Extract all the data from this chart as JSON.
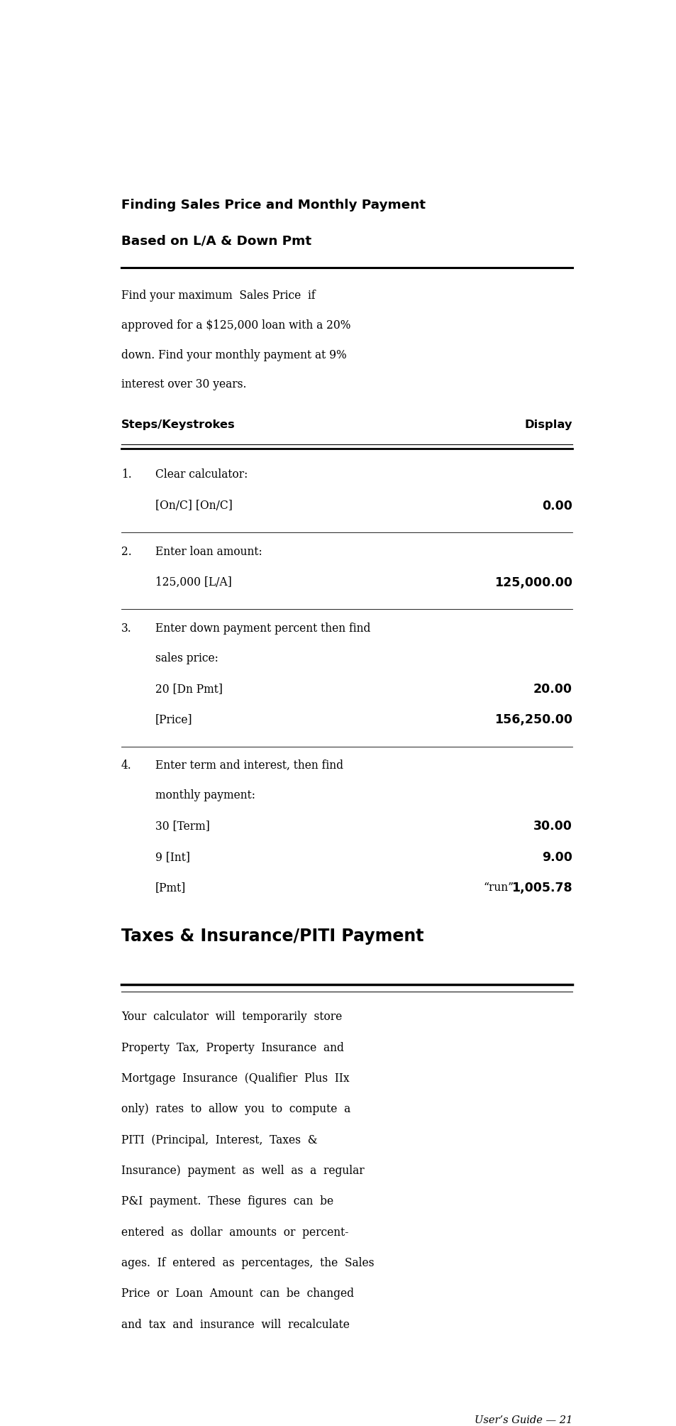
{
  "bg_color": "#ffffff",
  "text_color": "#000000",
  "section1_title_line1": "Finding Sales Price and Monthly Payment",
  "section1_title_line2": "Based on L/A & Down Pmt",
  "intro_lines": [
    "Find your maximum  Sales Price  if",
    "approved for a $125,000 loan with a 20%",
    "down. Find your monthly payment at 9%",
    "interest over 30 years."
  ],
  "col_header_left": "Steps/Keystrokes",
  "col_header_right": "Display",
  "section2_title": "Taxes & Insurance/PITI Payment",
  "body_lines": [
    "Your  calculator  will  temporarily  store",
    "Property  Tax,  Property  Insurance  and",
    "Mortgage  Insurance  (Qualifier  Plus  IIx",
    "only)  rates  to  allow  you  to  compute  a",
    "PITI  (Principal,  Interest,  Taxes  &",
    "Insurance)  payment  as  well  as  a  regular",
    "P&I  payment.  These  figures  can  be",
    "entered  as  dollar  amounts  or  percent-",
    "ages.  If  entered  as  percentages,  the  Sales",
    "Price  or  Loan  Amount  can  be  changed",
    "and  tax  and  insurance  will  recalculate"
  ],
  "footer_text": "User’s Guide — 21",
  "L": 0.07,
  "R": 0.93,
  "indent_num": 0.07,
  "indent_text": 0.135,
  "run_prefix": "“run”"
}
